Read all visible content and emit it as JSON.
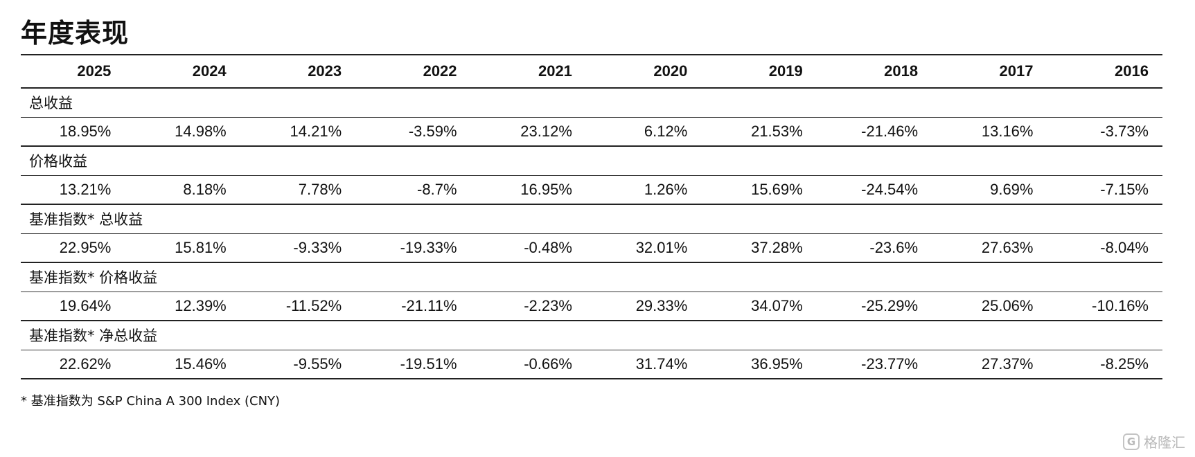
{
  "title": "年度表现",
  "table": {
    "years": [
      "2025",
      "2024",
      "2023",
      "2022",
      "2021",
      "2020",
      "2019",
      "2018",
      "2017",
      "2016"
    ],
    "sections": [
      {
        "label": "总收益",
        "values": [
          "18.95%",
          "14.98%",
          "14.21%",
          "-3.59%",
          "23.12%",
          "6.12%",
          "21.53%",
          "-21.46%",
          "13.16%",
          "-3.73%"
        ]
      },
      {
        "label": "价格收益",
        "values": [
          "13.21%",
          "8.18%",
          "7.78%",
          "-8.7%",
          "16.95%",
          "1.26%",
          "15.69%",
          "-24.54%",
          "9.69%",
          "-7.15%"
        ]
      },
      {
        "label": "基准指数* 总收益",
        "values": [
          "22.95%",
          "15.81%",
          "-9.33%",
          "-19.33%",
          "-0.48%",
          "32.01%",
          "37.28%",
          "-23.6%",
          "27.63%",
          "-8.04%"
        ]
      },
      {
        "label": "基准指数* 价格收益",
        "values": [
          "19.64%",
          "12.39%",
          "-11.52%",
          "-21.11%",
          "-2.23%",
          "29.33%",
          "34.07%",
          "-25.29%",
          "25.06%",
          "-10.16%"
        ]
      },
      {
        "label": "基准指数* 净总收益",
        "values": [
          "22.62%",
          "15.46%",
          "-9.55%",
          "-19.51%",
          "-0.66%",
          "31.74%",
          "36.95%",
          "-23.77%",
          "27.37%",
          "-8.25%"
        ]
      }
    ]
  },
  "footnote": "* 基准指数为 S&P China A 300 Index (CNY)",
  "watermark": {
    "logo": "G",
    "text": "格隆汇",
    "icon": "gelonghui-logo-icon"
  }
}
